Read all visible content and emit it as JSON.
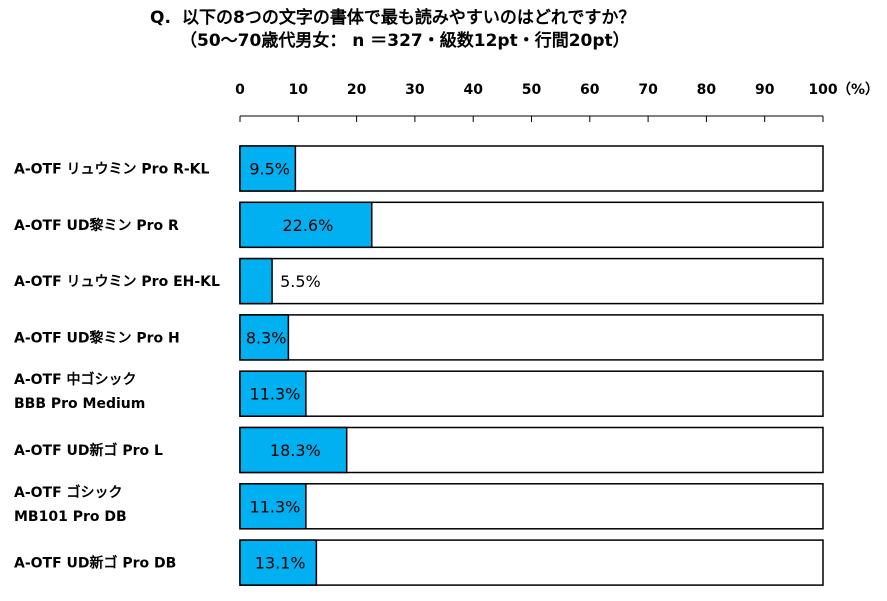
{
  "title": {
    "q": "Q.",
    "text": "以下の8つの文字の書体で最も読みやすいのはどれですか？",
    "subtitle": "（50～70歳代男女： n ＝327・級数12pt・行間20pt）"
  },
  "chart_data": {
    "type": "bar",
    "orientation": "horizontal",
    "axis": {
      "ticks": [
        0,
        10,
        20,
        30,
        40,
        50,
        60,
        70,
        80,
        90,
        100
      ],
      "unit": "（%）",
      "xlim": [
        0,
        100
      ],
      "position": "top"
    },
    "categories": [
      [
        "A-OTF リュウミン Pro R-KL"
      ],
      [
        "A-OTF UD黎ミン Pro R"
      ],
      [
        "A-OTF リュウミン Pro EH-KL"
      ],
      [
        "A-OTF UD黎ミン Pro H"
      ],
      [
        "A-OTF 中ゴシック",
        "BBB Pro Medium"
      ],
      [
        "A-OTF UD新ゴ Pro L"
      ],
      [
        "A-OTF ゴシック",
        "MB101 Pro DB"
      ],
      [
        "A-OTF UD新ゴ Pro DB"
      ]
    ],
    "values": [
      9.5,
      22.6,
      5.5,
      8.3,
      11.3,
      18.3,
      11.3,
      13.1
    ],
    "value_labels": [
      "9.5%",
      "22.6%",
      "5.5%",
      "8.3%",
      "11.3%",
      "18.3%",
      "11.3%",
      "13.1%"
    ],
    "bar_color": "#00b0f0",
    "track_color": "#ffffff",
    "grid": false,
    "legend": "none"
  }
}
